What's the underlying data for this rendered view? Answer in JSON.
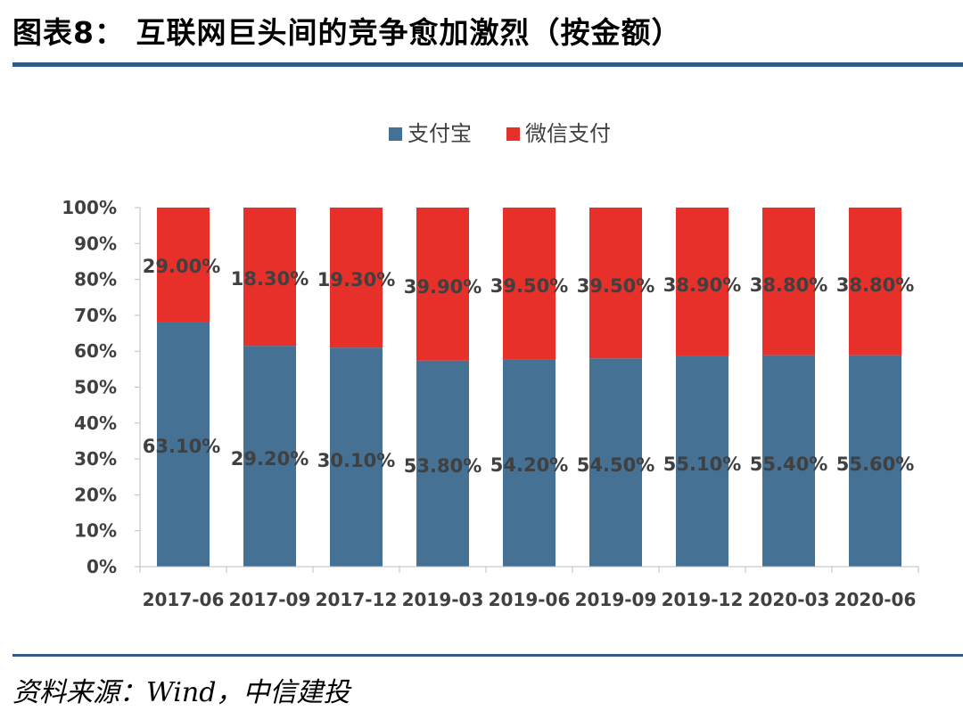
{
  "title": "图表8： 互联网巨头间的竞争愈加激烈（按金额）",
  "source": "资料来源：Wind，中信建投",
  "colors": {
    "alipay": "#457194",
    "wechat": "#e8302a",
    "rule": "#2f5a8a"
  },
  "chart_data": {
    "type": "bar",
    "stacked": true,
    "categories": [
      "2017-06",
      "2017-09",
      "2017-12",
      "2019-03",
      "2019-06",
      "2019-09",
      "2019-12",
      "2020-03",
      "2020-06"
    ],
    "series": [
      {
        "name": "支付宝",
        "values": [
          68,
          61.5,
          61,
          57.4,
          57.8,
          58,
          58.7,
          58.9,
          58.9
        ],
        "labels": [
          "63.10%",
          "29.20%",
          "30.10%",
          "53.80%",
          "54.20%",
          "54.50%",
          "55.10%",
          "55.40%",
          "55.60%"
        ]
      },
      {
        "name": "微信支付",
        "values": [
          32,
          38.5,
          39,
          42.6,
          42.2,
          42,
          41.3,
          41.1,
          41.1
        ],
        "labels": [
          "29.00%",
          "18.30%",
          "19.30%",
          "39.90%",
          "39.50%",
          "39.50%",
          "38.90%",
          "38.80%",
          "38.80%"
        ]
      }
    ],
    "yticks": [
      "0%",
      "10%",
      "20%",
      "30%",
      "40%",
      "50%",
      "60%",
      "70%",
      "80%",
      "90%",
      "100%"
    ],
    "ylim": [
      0,
      100
    ],
    "grid": false,
    "legend": "top-center"
  }
}
